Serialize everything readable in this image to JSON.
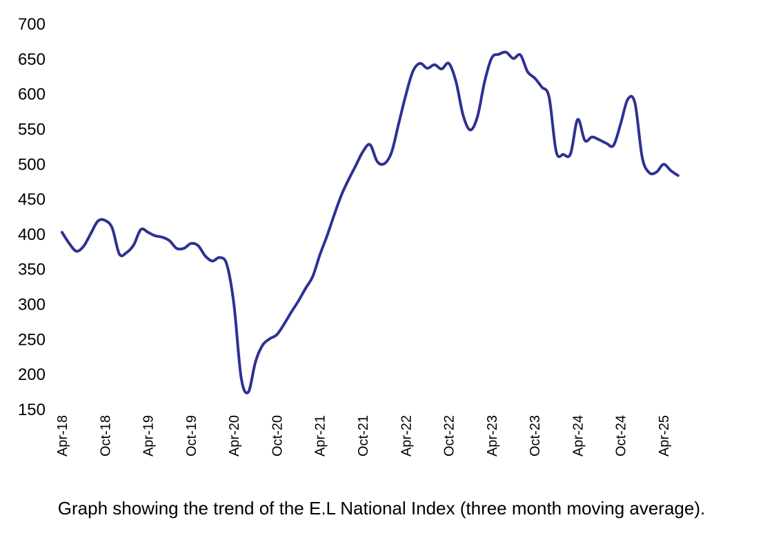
{
  "page": {
    "background": "#ffffff"
  },
  "chart_data": {
    "type": "line",
    "title": "",
    "caption": "Graph showing the trend of the E.L National Index (three month moving average).",
    "legend": "none",
    "grid": "off",
    "axes_lines_visible": false,
    "line_color": "#2e3192",
    "text_color": "#000000",
    "y_axis": {
      "min": 150,
      "max": 700,
      "tick_step": 50,
      "tick_labels": [
        "700",
        "650",
        "600",
        "550",
        "500",
        "450",
        "400",
        "350",
        "300",
        "250",
        "200",
        "150"
      ]
    },
    "x_axis": {
      "tick_labels": [
        "Apr-18",
        "Oct-18",
        "Apr-19",
        "Oct-19",
        "Apr-20",
        "Oct-20",
        "Apr-21",
        "Oct-21",
        "Apr-22",
        "Oct-22",
        "Apr-23",
        "Oct-23",
        "Apr-24",
        "Oct-24",
        "Apr-25"
      ],
      "tick_every_months": 6,
      "label_rotation_deg": -90
    },
    "series": [
      {
        "name": "E.L National Index (three month moving average)",
        "color": "#2e3192",
        "months": [
          "Apr-18",
          "May-18",
          "Jun-18",
          "Jul-18",
          "Aug-18",
          "Sep-18",
          "Oct-18",
          "Nov-18",
          "Dec-18",
          "Jan-19",
          "Feb-19",
          "Mar-19",
          "Apr-19",
          "May-19",
          "Jun-19",
          "Jul-19",
          "Aug-19",
          "Sep-19",
          "Oct-19",
          "Nov-19",
          "Dec-19",
          "Jan-20",
          "Feb-20",
          "Mar-20",
          "Apr-20",
          "May-20",
          "Jun-20",
          "Jul-20",
          "Aug-20",
          "Sep-20",
          "Oct-20",
          "Nov-20",
          "Dec-20",
          "Jan-21",
          "Feb-21",
          "Mar-21",
          "Apr-21",
          "May-21",
          "Jun-21",
          "Jul-21",
          "Aug-21",
          "Sep-21",
          "Oct-21",
          "Nov-21",
          "Dec-21",
          "Jan-22",
          "Feb-22",
          "Mar-22",
          "Apr-22",
          "May-22",
          "Jun-22",
          "Jul-22",
          "Aug-22",
          "Sep-22",
          "Oct-22",
          "Nov-22",
          "Dec-22",
          "Jan-23",
          "Feb-23",
          "Mar-23",
          "Apr-23",
          "May-23",
          "Jun-23",
          "Jul-23",
          "Aug-23",
          "Sep-23",
          "Oct-23",
          "Nov-23",
          "Dec-23",
          "Jan-24",
          "Feb-24",
          "Mar-24",
          "Apr-24",
          "May-24",
          "Jun-24",
          "Jul-24",
          "Aug-24",
          "Sep-24",
          "Oct-24",
          "Nov-24",
          "Dec-24",
          "Jan-25",
          "Feb-25",
          "Mar-25",
          "Apr-25",
          "May-25",
          "Jun-25"
        ],
        "values": [
          403,
          387,
          376,
          383,
          401,
          419,
          420,
          409,
          372,
          374,
          385,
          407,
          403,
          398,
          396,
          391,
          380,
          380,
          387,
          384,
          369,
          362,
          367,
          357,
          300,
          196,
          175,
          218,
          242,
          251,
          257,
          272,
          289,
          305,
          323,
          340,
          371,
          398,
          428,
          456,
          478,
          498,
          518,
          528,
          504,
          501,
          517,
          558,
          599,
          633,
          644,
          637,
          642,
          636,
          644,
          618,
          570,
          549,
          568,
          618,
          652,
          657,
          660,
          651,
          656,
          632,
          623,
          610,
          596,
          518,
          514,
          515,
          564,
          534,
          539,
          535,
          530,
          527,
          558,
          593,
          587,
          510,
          488,
          489,
          500,
          491,
          484
        ]
      }
    ]
  }
}
